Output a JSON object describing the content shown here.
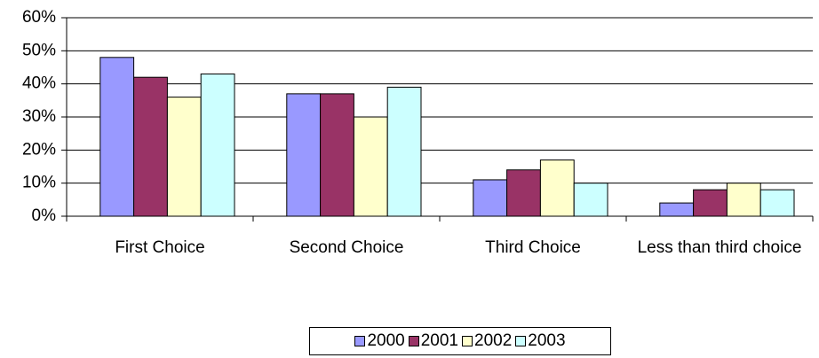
{
  "chart_data": {
    "type": "bar",
    "categories": [
      "First Choice",
      "Second Choice",
      "Third Choice",
      "Less than third choice"
    ],
    "series": [
      {
        "name": "2000",
        "color": "#9999ff",
        "values": [
          48,
          37,
          11,
          4
        ]
      },
      {
        "name": "2001",
        "color": "#993366",
        "values": [
          42,
          37,
          14,
          8
        ]
      },
      {
        "name": "2002",
        "color": "#ffffcc",
        "values": [
          36,
          30,
          17,
          10
        ]
      },
      {
        "name": "2003",
        "color": "#ccffff",
        "values": [
          43,
          39,
          10,
          8
        ]
      }
    ],
    "ylim": [
      0,
      60
    ],
    "yticks": [
      {
        "value": 0,
        "label": "0%"
      },
      {
        "value": 10,
        "label": "10%"
      },
      {
        "value": 20,
        "label": "20%"
      },
      {
        "value": 30,
        "label": "30%"
      },
      {
        "value": 40,
        "label": "40%"
      },
      {
        "value": 50,
        "label": "50%"
      },
      {
        "value": 60,
        "label": "60%"
      }
    ],
    "grid": true,
    "legend": "bottom"
  }
}
